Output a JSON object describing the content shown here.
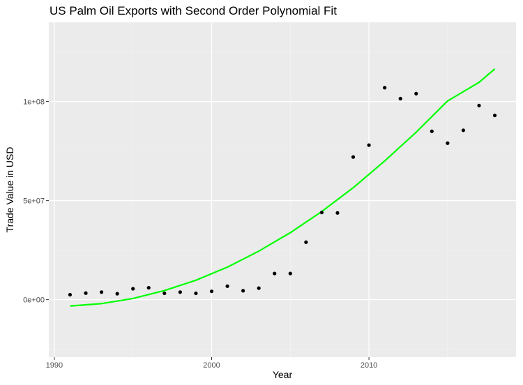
{
  "chart_data": {
    "type": "scatter",
    "title": "US Palm Oil Exports with Second Order Polynomial Fit",
    "xlabel": "Year",
    "ylabel": "Trade Value in USD",
    "xlim": [
      1989.65,
      2019.35
    ],
    "ylim": [
      -29000000,
      140000000
    ],
    "x_ticks": [
      1990,
      2000,
      2010
    ],
    "x_tick_labels": [
      "1990",
      "2000",
      "2010"
    ],
    "y_ticks": [
      0,
      50000000,
      100000000
    ],
    "y_tick_labels": [
      "0e+00",
      "5e+07",
      "1e+08"
    ],
    "grid": true,
    "panel_color": "#ebebeb",
    "point_color": "#000000",
    "fit_color": "#00ff00",
    "series": [
      {
        "type": "scatter",
        "x": [
          1991,
          1992,
          1993,
          1994,
          1995,
          1996,
          1997,
          1998,
          1999,
          2000,
          2001,
          2002,
          2003,
          2004,
          2005,
          2006,
          2007,
          2008,
          2009,
          2010,
          2011,
          2012,
          2013,
          2014,
          2015,
          2016,
          2017,
          2018
        ],
        "y": [
          2500000,
          3300000,
          3800000,
          3000000,
          5500000,
          6000000,
          3200000,
          3800000,
          3200000,
          4200000,
          6800000,
          4500000,
          5800000,
          13200000,
          13200000,
          29000000,
          44000000,
          43800000,
          72000000,
          78000000,
          107000000,
          101500000,
          104000000,
          85000000,
          79000000,
          85500000,
          98000000,
          93000000
        ]
      },
      {
        "type": "line",
        "x": [
          1991,
          1993,
          1995,
          1997,
          1999,
          2001,
          2003,
          2005,
          2007,
          2009,
          2011,
          2013,
          2015,
          2017,
          2018
        ],
        "y": [
          -3200000,
          -2000000,
          600000,
          4600000,
          9800000,
          16400000,
          24500000,
          33800000,
          44500000,
          56500000,
          70000000,
          84500000,
          100300000,
          109700000,
          116500000
        ]
      }
    ]
  }
}
